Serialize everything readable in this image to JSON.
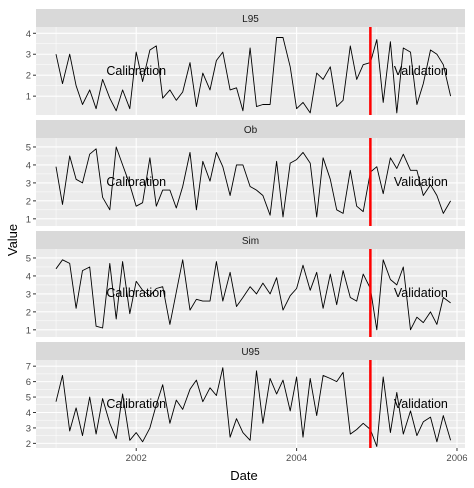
{
  "chart_data": {
    "type": "line",
    "xlabel": "Date",
    "ylabel": "Value",
    "x_axis": {
      "ticks": [
        2002,
        2004,
        2006
      ],
      "range": [
        2000.75,
        2006.1
      ]
    },
    "split_line": {
      "x": 2004.92,
      "color": "#ff0000"
    },
    "line_color": "#000000",
    "annotations": {
      "left": "Calibration",
      "right": "Validation"
    },
    "panels": [
      {
        "name": "L95",
        "ylim": [
          0.1,
          4.3
        ],
        "yticks": [
          1,
          2,
          3,
          4
        ],
        "x": [
          2001.0,
          2001.08,
          2001.17,
          2001.25,
          2001.33,
          2001.42,
          2001.5,
          2001.58,
          2001.67,
          2001.75,
          2001.83,
          2001.92,
          2002.0,
          2002.08,
          2002.17,
          2002.25,
          2002.33,
          2002.42,
          2002.5,
          2002.58,
          2002.67,
          2002.75,
          2002.83,
          2002.92,
          2003.0,
          2003.08,
          2003.17,
          2003.25,
          2003.33,
          2003.42,
          2003.5,
          2003.58,
          2003.67,
          2003.75,
          2003.83,
          2003.92,
          2004.0,
          2004.08,
          2004.17,
          2004.25,
          2004.33,
          2004.42,
          2004.5,
          2004.58,
          2004.67,
          2004.75,
          2004.83,
          2004.92,
          2005.0,
          2005.08,
          2005.17,
          2005.25,
          2005.33,
          2005.42,
          2005.5,
          2005.58,
          2005.67,
          2005.75,
          2005.83,
          2005.92
        ],
        "values": [
          3.0,
          1.6,
          3.0,
          1.5,
          0.6,
          1.3,
          0.4,
          1.8,
          0.9,
          0.3,
          1.3,
          0.4,
          3.1,
          1.7,
          3.2,
          3.4,
          0.9,
          1.3,
          0.8,
          1.2,
          2.6,
          0.5,
          2.1,
          1.3,
          2.7,
          3.1,
          1.3,
          1.4,
          0.3,
          3.3,
          0.5,
          0.6,
          0.6,
          3.8,
          3.8,
          2.4,
          0.4,
          0.7,
          0.2,
          2.1,
          1.8,
          2.4,
          0.5,
          0.8,
          3.4,
          1.8,
          2.5,
          2.6,
          3.7,
          0.7,
          3.6,
          0.2,
          3.3,
          3.1,
          0.6,
          1.6,
          3.2,
          3.0,
          2.5,
          1.0
        ]
      },
      {
        "name": "Ob",
        "ylim": [
          0.6,
          5.5
        ],
        "yticks": [
          1,
          2,
          3,
          4,
          5
        ],
        "x": [
          2001.0,
          2001.08,
          2001.17,
          2001.25,
          2001.33,
          2001.42,
          2001.5,
          2001.58,
          2001.67,
          2001.75,
          2001.83,
          2001.92,
          2002.0,
          2002.08,
          2002.17,
          2002.25,
          2002.33,
          2002.42,
          2002.5,
          2002.58,
          2002.67,
          2002.75,
          2002.83,
          2002.92,
          2003.0,
          2003.08,
          2003.17,
          2003.25,
          2003.33,
          2003.42,
          2003.5,
          2003.58,
          2003.67,
          2003.75,
          2003.83,
          2003.92,
          2004.0,
          2004.08,
          2004.17,
          2004.25,
          2004.33,
          2004.42,
          2004.5,
          2004.58,
          2004.67,
          2004.75,
          2004.83,
          2004.92,
          2005.0,
          2005.08,
          2005.17,
          2005.25,
          2005.33,
          2005.42,
          2005.5,
          2005.58,
          2005.67,
          2005.75,
          2005.83,
          2005.92
        ],
        "values": [
          3.9,
          1.8,
          4.5,
          3.2,
          3.0,
          4.6,
          4.9,
          2.2,
          1.5,
          5.0,
          4.0,
          2.9,
          1.7,
          1.9,
          4.4,
          1.7,
          2.6,
          2.6,
          1.6,
          2.8,
          4.7,
          1.5,
          4.2,
          3.1,
          4.7,
          3.9,
          2.3,
          4.0,
          4.0,
          2.8,
          2.6,
          2.3,
          1.2,
          4.2,
          1.1,
          4.1,
          4.3,
          4.7,
          4.1,
          1.1,
          4.4,
          3.2,
          1.5,
          1.3,
          3.7,
          1.7,
          1.4,
          3.6,
          3.9,
          2.4,
          4.4,
          3.8,
          4.6,
          3.7,
          3.7,
          2.3,
          2.9,
          2.3,
          1.3,
          2.0
        ]
      },
      {
        "name": "Sim",
        "ylim": [
          0.6,
          5.5
        ],
        "yticks": [
          1,
          2,
          3,
          4,
          5
        ],
        "x": [
          2001.0,
          2001.08,
          2001.17,
          2001.25,
          2001.33,
          2001.42,
          2001.5,
          2001.58,
          2001.67,
          2001.75,
          2001.83,
          2001.92,
          2002.0,
          2002.08,
          2002.17,
          2002.25,
          2002.33,
          2002.42,
          2002.5,
          2002.58,
          2002.67,
          2002.75,
          2002.83,
          2002.92,
          2003.0,
          2003.08,
          2003.17,
          2003.25,
          2003.33,
          2003.42,
          2003.5,
          2003.58,
          2003.67,
          2003.75,
          2003.83,
          2003.92,
          2004.0,
          2004.08,
          2004.17,
          2004.25,
          2004.33,
          2004.42,
          2004.5,
          2004.58,
          2004.67,
          2004.75,
          2004.83,
          2004.92,
          2005.0,
          2005.08,
          2005.17,
          2005.25,
          2005.33,
          2005.42,
          2005.5,
          2005.58,
          2005.67,
          2005.75,
          2005.83,
          2005.92
        ],
        "values": [
          4.4,
          4.9,
          4.7,
          2.2,
          4.3,
          4.5,
          1.2,
          1.1,
          4.7,
          1.6,
          4.8,
          1.9,
          3.7,
          3.2,
          2.9,
          3.3,
          3.4,
          1.3,
          3.1,
          4.9,
          2.1,
          2.7,
          2.6,
          2.6,
          4.8,
          2.6,
          4.2,
          2.3,
          2.8,
          3.4,
          3.0,
          3.6,
          3.0,
          3.9,
          2.1,
          2.9,
          3.3,
          4.6,
          3.2,
          4.2,
          2.2,
          4.1,
          2.4,
          4.3,
          2.8,
          2.6,
          4.1,
          3.3,
          1.0,
          4.9,
          3.8,
          3.5,
          4.5,
          1.0,
          1.7,
          1.4,
          2.0,
          1.3,
          2.8,
          2.5
        ]
      },
      {
        "name": "U95",
        "ylim": [
          1.7,
          7.4
        ],
        "yticks": [
          2,
          3,
          4,
          5,
          6,
          7
        ],
        "x": [
          2001.0,
          2001.08,
          2001.17,
          2001.25,
          2001.33,
          2001.42,
          2001.5,
          2001.58,
          2001.67,
          2001.75,
          2001.83,
          2001.92,
          2002.0,
          2002.08,
          2002.17,
          2002.25,
          2002.33,
          2002.42,
          2002.5,
          2002.58,
          2002.67,
          2002.75,
          2002.83,
          2002.92,
          2003.0,
          2003.08,
          2003.17,
          2003.25,
          2003.33,
          2003.42,
          2003.5,
          2003.58,
          2003.67,
          2003.75,
          2003.83,
          2003.92,
          2004.0,
          2004.08,
          2004.17,
          2004.25,
          2004.33,
          2004.42,
          2004.5,
          2004.58,
          2004.67,
          2004.75,
          2004.83,
          2004.92,
          2005.0,
          2005.08,
          2005.17,
          2005.25,
          2005.33,
          2005.42,
          2005.5,
          2005.58,
          2005.67,
          2005.75,
          2005.83,
          2005.92
        ],
        "values": [
          4.7,
          6.4,
          2.8,
          4.3,
          2.5,
          5.0,
          2.6,
          4.9,
          3.3,
          2.3,
          5.2,
          2.2,
          2.7,
          2.1,
          3.0,
          4.5,
          5.8,
          3.3,
          4.8,
          4.2,
          5.5,
          6.1,
          4.7,
          5.6,
          5.1,
          6.9,
          2.4,
          3.6,
          2.7,
          2.2,
          6.7,
          3.3,
          6.2,
          5.2,
          6.1,
          4.1,
          6.3,
          2.4,
          6.2,
          3.8,
          6.4,
          6.2,
          6.0,
          6.6,
          2.6,
          2.9,
          3.3,
          2.9,
          1.8,
          6.3,
          2.7,
          5.3,
          2.6,
          4.1,
          2.5,
          3.4,
          3.7,
          2.1,
          3.8,
          2.2
        ]
      }
    ]
  }
}
